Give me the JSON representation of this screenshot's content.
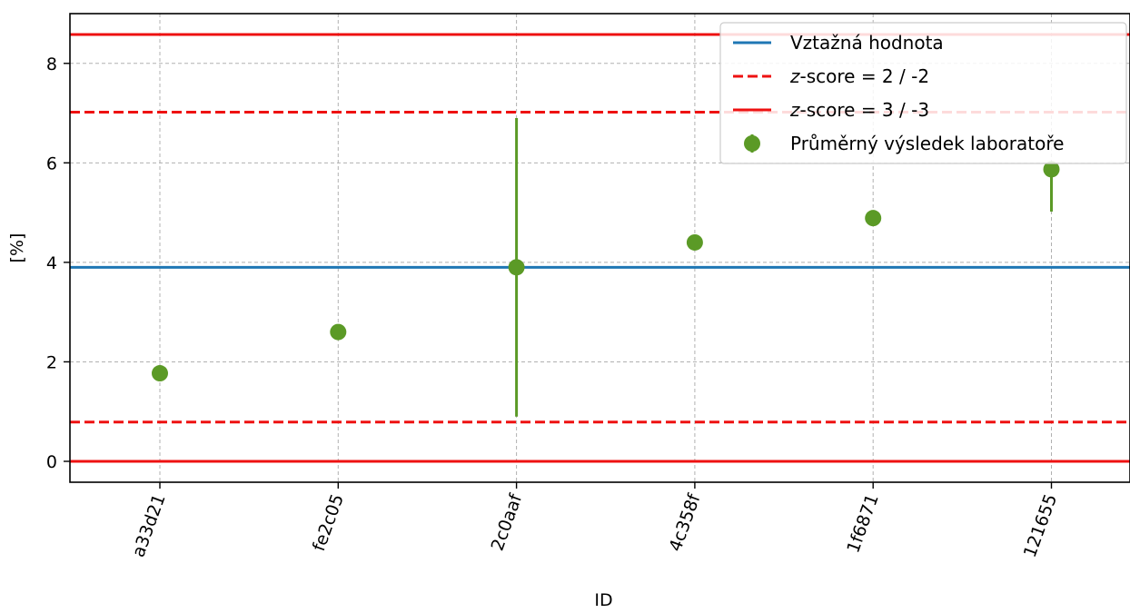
{
  "chart_data": {
    "type": "scatter",
    "xlabel": "ID",
    "ylabel": "[%]",
    "categories": [
      "a33d21",
      "fe2c05",
      "2c0aaf",
      "4c358f",
      "1f6871",
      "121655"
    ],
    "ylim": [
      -0.42,
      9.0
    ],
    "yticks": [
      0,
      2,
      4,
      6,
      8
    ],
    "grid": true,
    "legend_position": "top-right",
    "reference_value": 3.9,
    "z2_lines": [
      0.79,
      7.02
    ],
    "z3_lines": [
      0.0,
      8.58
    ],
    "series": [
      {
        "name": "Průměrný výsledek laboratoře",
        "values": [
          1.77,
          2.6,
          3.9,
          4.4,
          4.89,
          5.87
        ],
        "err_low": [
          0.0,
          0.1,
          3.0,
          0.0,
          0.0,
          0.85
        ],
        "err_high": [
          0.0,
          0.1,
          3.0,
          0.0,
          0.0,
          0.0
        ]
      }
    ],
    "legend": [
      {
        "label_pre": "",
        "label_italic": "",
        "label_post": "Vztažná hodnota",
        "style": "solid",
        "color": "#1f77b4"
      },
      {
        "label_pre": "",
        "label_italic": "z",
        "label_post": "-score = 2 / -2",
        "style": "dashed",
        "color": "#ee1111"
      },
      {
        "label_pre": "",
        "label_italic": "z",
        "label_post": "-score = 3 / -3",
        "style": "solid",
        "color": "#ee1111"
      },
      {
        "label_pre": "",
        "label_italic": "",
        "label_post": "Průměrný výsledek laboratoře",
        "style": "marker",
        "color": "#5b9a26"
      }
    ],
    "colors": {
      "reference": "#1f77b4",
      "zscore": "#ee1111",
      "points": "#5b9a26",
      "grid": "#b0b0b0"
    }
  }
}
